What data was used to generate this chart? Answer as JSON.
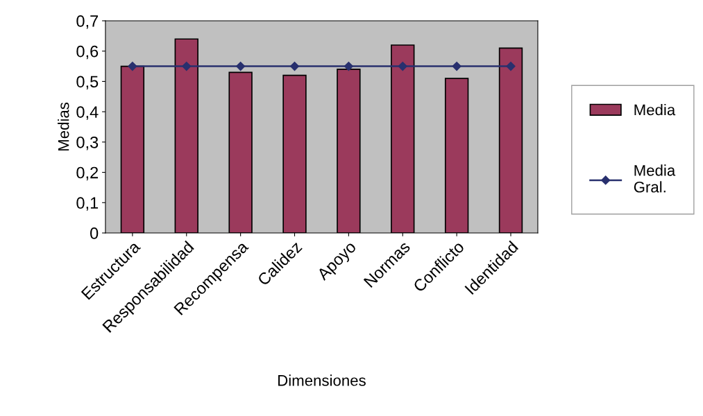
{
  "chart_data": {
    "type": "bar",
    "xlabel": "Dimensiones",
    "ylabel": "Medias",
    "categories": [
      "Estructura",
      "Responsabilidad",
      "Recompensa",
      "Calidez",
      "Apoyo",
      "Normas",
      "Conflicto",
      "Identidad"
    ],
    "series": [
      {
        "name": "Media",
        "color": "#9b3a5c",
        "values": [
          0.55,
          0.64,
          0.53,
          0.52,
          0.54,
          0.62,
          0.51,
          0.61
        ]
      },
      {
        "name": "Media\nGral.",
        "type": "line",
        "color": "#28306e",
        "marker": "diamond",
        "values": [
          0.55,
          0.55,
          0.55,
          0.55,
          0.55,
          0.55,
          0.55,
          0.55
        ]
      }
    ],
    "ylim": [
      0,
      0.7
    ],
    "yticks": [
      0,
      {
        "value": 0.1,
        "label": "0,1"
      },
      {
        "value": 0.2,
        "label": "0,2"
      },
      {
        "value": 0.3,
        "label": "0,3"
      },
      {
        "value": 0.4,
        "label": "0,4"
      },
      {
        "value": 0.5,
        "label": "0,5"
      },
      {
        "value": 0.6,
        "label": "0,6"
      },
      {
        "value": 0.7,
        "label": "0,7"
      }
    ],
    "grid": false,
    "legend": "right"
  }
}
